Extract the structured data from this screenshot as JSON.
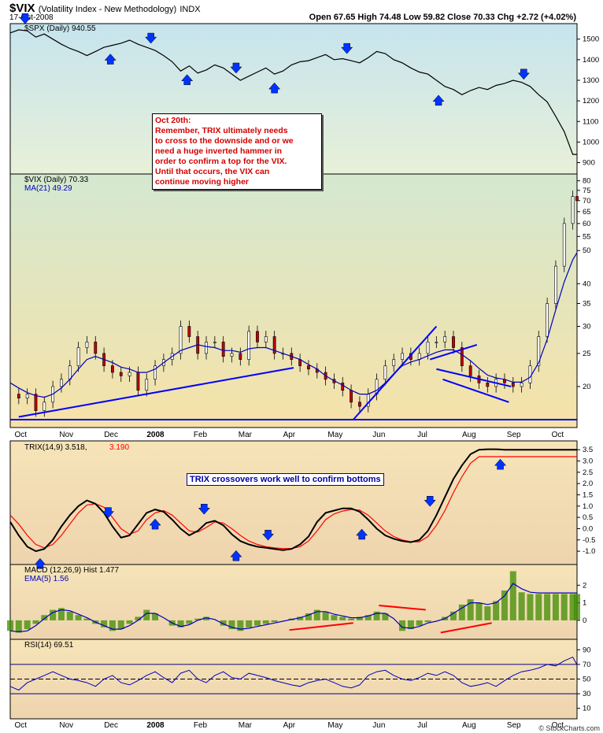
{
  "header": {
    "symbol": "$VIX",
    "name": "(Volatility Index - New Methodology)",
    "exchange": "INDX",
    "date": "17-Oct-2008",
    "ohlc": "Open 67.65   High 74.48   Low 59.82   Close 70.33   Chg +2.72 (+4.02%)",
    "brand": "© StockCharts.com"
  },
  "annotations": {
    "note_lines": [
      "Oct 20th:",
      "Remember, TRIX ultimately needs",
      "to cross to the downside and or we",
      "need a huge inverted hammer in",
      "order to confirm a top for the VIX.",
      "Until that occurs, the VIX can",
      "continue moving higher"
    ],
    "trix_note": "TRIX crossovers work well to confirm bottoms"
  },
  "colors": {
    "price": "#000000",
    "ma": "#0000c0",
    "trendline": "#0000ff",
    "arrow": "#0033ff",
    "signal": "#ff0000",
    "hist": "#3c8c00",
    "spx_bg_top": "#c6e4ee",
    "spx_bg_bottom": "#e8f0d8",
    "vix_bg_top": "#d4e8d0",
    "vix_bg_bottom": "#f6e2a8",
    "ind_bg_top": "#f6e4b8",
    "ind_bg_bottom": "#eed4ae"
  },
  "chart_data": [
    {
      "type": "line",
      "name": "spx-panel",
      "legend": "$SPX (Daily) 940.55",
      "y_ticks": [
        900,
        1000,
        1100,
        1200,
        1300,
        1400,
        1500
      ],
      "ylim": [
        860,
        1560
      ],
      "x": [
        0,
        4,
        8,
        12,
        16,
        20,
        24,
        28,
        32,
        36,
        40,
        44,
        48,
        52,
        56,
        60,
        64,
        68,
        72,
        76,
        80,
        84,
        88,
        92,
        96,
        100,
        104,
        108,
        112,
        116,
        120,
        124,
        128,
        132,
        136,
        140,
        144,
        148,
        152,
        156,
        160,
        164,
        168,
        172,
        176,
        180,
        184,
        188,
        192,
        196,
        200,
        204,
        208,
        212,
        216,
        220,
        224,
        228,
        232,
        236,
        240,
        244,
        248,
        252,
        256,
        260,
        264,
        266
      ],
      "series": [
        {
          "name": "$SPX",
          "values": [
            1530,
            1545,
            1540,
            1510,
            1525,
            1500,
            1475,
            1455,
            1440,
            1420,
            1440,
            1460,
            1470,
            1480,
            1495,
            1475,
            1460,
            1445,
            1420,
            1390,
            1345,
            1370,
            1335,
            1350,
            1375,
            1360,
            1330,
            1300,
            1320,
            1340,
            1360,
            1330,
            1345,
            1375,
            1390,
            1395,
            1410,
            1425,
            1400,
            1405,
            1395,
            1385,
            1410,
            1440,
            1430,
            1400,
            1385,
            1360,
            1340,
            1330,
            1300,
            1270,
            1255,
            1230,
            1250,
            1265,
            1255,
            1275,
            1285,
            1300,
            1290,
            1270,
            1230,
            1195,
            1125,
            1050,
            940,
            940
          ]
        }
      ],
      "arrows_down_x": [
        7,
        66,
        106,
        158,
        241
      ],
      "arrows_up_x": [
        47,
        83,
        124,
        201
      ]
    },
    {
      "type": "line",
      "name": "vix-panel",
      "legend": "$VIX (Daily) 70.33",
      "legend_ma": "MA(21) 49.29",
      "y_ticks": [
        20,
        25,
        30,
        35,
        40,
        50,
        55,
        60,
        65,
        70,
        75,
        80
      ],
      "ylim": [
        15.5,
        82
      ],
      "x_labels": [
        "Oct",
        "Nov",
        "Dec",
        "2008",
        "Feb",
        "Mar",
        "Apr",
        "May",
        "Jun",
        "Jul",
        "Aug",
        "Sep",
        "Oct"
      ],
      "x_label_pos": [
        5,
        26,
        47,
        67,
        89,
        110,
        131,
        152,
        173,
        194,
        215,
        236,
        257
      ],
      "x": [
        0,
        4,
        8,
        12,
        16,
        20,
        24,
        28,
        32,
        36,
        40,
        44,
        48,
        52,
        56,
        60,
        64,
        68,
        72,
        76,
        80,
        84,
        88,
        92,
        96,
        100,
        104,
        108,
        112,
        116,
        120,
        124,
        128,
        132,
        136,
        140,
        144,
        148,
        152,
        156,
        160,
        164,
        168,
        172,
        176,
        180,
        184,
        188,
        192,
        196,
        200,
        204,
        208,
        212,
        216,
        220,
        224,
        228,
        232,
        236,
        240,
        244,
        248,
        252,
        256,
        260,
        264,
        266
      ],
      "series": [
        {
          "name": "$VIX",
          "values": [
            19,
            18.5,
            19,
            17,
            18,
            20,
            21,
            23,
            26,
            27,
            25,
            23,
            22,
            21.5,
            22,
            19.5,
            21,
            23,
            24,
            25,
            30,
            28,
            25,
            27,
            27,
            24.5,
            25,
            24,
            29,
            27,
            28,
            25,
            25,
            24,
            23,
            22.5,
            22,
            21,
            20.5,
            19.5,
            18,
            17.5,
            19,
            21,
            23,
            24,
            25,
            24,
            25,
            27,
            27,
            28,
            26,
            23,
            21.5,
            20.5,
            20,
            21,
            20.5,
            20,
            20.5,
            23,
            28,
            35,
            45,
            60,
            72,
            70
          ]
        },
        {
          "name": "MA(21)",
          "values": [
            20.5,
            19.8,
            19.2,
            18.8,
            18.6,
            19,
            19.8,
            21,
            22.5,
            24,
            24.5,
            24,
            23.5,
            22.8,
            22.5,
            22,
            22,
            22.5,
            23.5,
            24.5,
            25.5,
            26,
            26.5,
            26.2,
            26,
            25.5,
            25.5,
            25.2,
            25.8,
            26,
            26,
            25.5,
            25,
            24.5,
            24,
            23.2,
            22.5,
            21.5,
            20.8,
            20.2,
            19.5,
            19,
            19,
            19.5,
            20.5,
            21.8,
            23,
            23.6,
            24,
            24.6,
            25.2,
            25.6,
            25.6,
            24.8,
            23.8,
            22.6,
            21.6,
            21.2,
            21,
            20.6,
            20.6,
            21.3,
            23.5,
            27.5,
            33.5,
            40.5,
            47,
            49.3
          ]
        }
      ],
      "trendlines": [
        [
          4,
          16.3,
          133,
          22.7
        ],
        [
          161,
          16,
          200,
          30
        ],
        [
          197,
          24,
          219,
          26.5
        ],
        [
          203,
          21,
          234,
          18
        ],
        [
          200,
          22.5,
          235,
          20
        ],
        [
          0,
          16,
          266,
          16
        ]
      ],
      "arrows_up_x": [
        7
      ],
      "arrows_down_x": [
        7
      ]
    },
    {
      "type": "line",
      "name": "trix-panel",
      "legend": "TRIX(14,9) 3.518,",
      "legend_signal": "3.190",
      "y_ticks": [
        -1.0,
        -0.5,
        0.0,
        0.5,
        1.0,
        1.5,
        2.0,
        2.5,
        3.0,
        3.5
      ],
      "ylim": [
        -1.45,
        3.75
      ],
      "x": [
        0,
        4,
        8,
        12,
        16,
        20,
        24,
        28,
        32,
        36,
        40,
        44,
        48,
        52,
        56,
        60,
        64,
        68,
        72,
        76,
        80,
        84,
        88,
        92,
        96,
        100,
        104,
        108,
        112,
        116,
        120,
        124,
        128,
        132,
        136,
        140,
        144,
        148,
        152,
        156,
        160,
        164,
        168,
        172,
        176,
        180,
        184,
        188,
        192,
        196,
        200,
        204,
        208,
        212,
        216,
        220,
        224,
        228,
        232,
        236,
        240,
        244,
        248,
        252,
        256,
        260,
        264,
        266
      ],
      "series": [
        {
          "name": "TRIX",
          "values": [
            0.3,
            -0.3,
            -0.8,
            -1.0,
            -0.9,
            -0.5,
            0.1,
            0.6,
            1.0,
            1.25,
            1.1,
            0.7,
            0.1,
            -0.4,
            -0.3,
            0.2,
            0.7,
            0.85,
            0.75,
            0.4,
            0.0,
            -0.3,
            -0.1,
            0.25,
            0.35,
            0.15,
            -0.25,
            -0.55,
            -0.7,
            -0.8,
            -0.85,
            -0.9,
            -0.95,
            -0.9,
            -0.7,
            -0.35,
            0.3,
            0.7,
            0.8,
            0.9,
            0.9,
            0.75,
            0.4,
            0.0,
            -0.3,
            -0.45,
            -0.55,
            -0.6,
            -0.5,
            -0.1,
            0.6,
            1.4,
            2.2,
            2.8,
            3.3,
            3.5,
            3.52,
            3.52,
            3.5,
            3.5,
            3.5,
            3.5,
            3.5,
            3.5,
            3.5,
            3.5,
            3.5,
            3.5
          ]
        },
        {
          "name": "Signal",
          "values": [
            0.6,
            0.2,
            -0.3,
            -0.7,
            -0.85,
            -0.7,
            -0.3,
            0.2,
            0.7,
            1.05,
            1.1,
            0.95,
            0.5,
            0.0,
            -0.25,
            -0.1,
            0.4,
            0.7,
            0.8,
            0.6,
            0.25,
            -0.1,
            -0.15,
            0.05,
            0.3,
            0.25,
            0.0,
            -0.3,
            -0.55,
            -0.7,
            -0.8,
            -0.85,
            -0.88,
            -0.88,
            -0.8,
            -0.55,
            -0.1,
            0.4,
            0.65,
            0.78,
            0.85,
            0.82,
            0.6,
            0.25,
            -0.1,
            -0.35,
            -0.5,
            -0.58,
            -0.58,
            -0.35,
            0.15,
            0.8,
            1.6,
            2.3,
            2.9,
            3.19,
            3.19,
            3.19,
            3.19,
            3.19,
            3.19,
            3.19,
            3.19,
            3.19,
            3.19,
            3.19,
            3.19,
            3.19
          ]
        }
      ],
      "arrows_down_x": [
        46,
        91,
        121,
        197
      ],
      "arrows_up_x": [
        14,
        68,
        106,
        165,
        230
      ]
    },
    {
      "type": "bar",
      "name": "macd-panel",
      "legend": "MACD (12,26,9) Hist 1.477",
      "legend_ema": "EMA(5) 1.56",
      "y_ticks": [
        0,
        1,
        2
      ],
      "ylim": [
        -0.9,
        3.0
      ],
      "x": [
        0,
        4,
        8,
        12,
        16,
        20,
        24,
        28,
        32,
        36,
        40,
        44,
        48,
        52,
        56,
        60,
        64,
        68,
        72,
        76,
        80,
        84,
        88,
        92,
        96,
        100,
        104,
        108,
        112,
        116,
        120,
        124,
        128,
        132,
        136,
        140,
        144,
        148,
        152,
        156,
        160,
        164,
        168,
        172,
        176,
        180,
        184,
        188,
        192,
        196,
        200,
        204,
        208,
        212,
        216,
        220,
        224,
        228,
        232,
        236,
        240,
        244,
        248,
        252,
        256,
        260,
        264,
        266
      ],
      "series": [
        {
          "name": "Hist",
          "values": [
            -0.6,
            -0.7,
            -0.5,
            -0.2,
            0.3,
            0.6,
            0.7,
            0.5,
            0.3,
            0.1,
            -0.2,
            -0.4,
            -0.6,
            -0.5,
            -0.2,
            0.2,
            0.6,
            0.4,
            0.0,
            -0.3,
            -0.4,
            -0.2,
            0.1,
            0.2,
            0.0,
            -0.3,
            -0.5,
            -0.6,
            -0.4,
            -0.3,
            -0.2,
            -0.1,
            0.0,
            0.1,
            0.2,
            0.4,
            0.6,
            0.5,
            0.3,
            0.2,
            0.1,
            0.2,
            0.3,
            0.5,
            0.4,
            0.0,
            -0.6,
            -0.5,
            -0.3,
            -0.1,
            0.0,
            0.2,
            0.5,
            0.9,
            1.2,
            1.0,
            0.8,
            1.1,
            1.7,
            2.8,
            1.6,
            1.5,
            1.5,
            1.5,
            1.5,
            1.5,
            1.5,
            1.5
          ]
        },
        {
          "name": "EMA(5)",
          "values": [
            -0.6,
            -0.65,
            -0.6,
            -0.3,
            0.1,
            0.45,
            0.6,
            0.55,
            0.35,
            0.15,
            -0.1,
            -0.3,
            -0.5,
            -0.5,
            -0.3,
            0.0,
            0.4,
            0.4,
            0.15,
            -0.15,
            -0.35,
            -0.25,
            0.0,
            0.15,
            0.05,
            -0.2,
            -0.4,
            -0.5,
            -0.45,
            -0.35,
            -0.25,
            -0.15,
            -0.05,
            0.05,
            0.15,
            0.3,
            0.5,
            0.5,
            0.35,
            0.25,
            0.15,
            0.15,
            0.25,
            0.4,
            0.4,
            0.1,
            -0.4,
            -0.45,
            -0.35,
            -0.15,
            -0.05,
            0.1,
            0.4,
            0.7,
            1.0,
            1.0,
            0.9,
            1.0,
            1.4,
            2.1,
            1.8,
            1.6,
            1.56,
            1.56,
            1.56,
            1.56,
            1.56,
            1.56
          ]
        }
      ],
      "red_lines": [
        [
          131,
          -0.55,
          161,
          -0.15
        ],
        [
          173,
          0.85,
          195,
          0.6
        ],
        [
          202,
          -0.7,
          226,
          -0.15
        ]
      ]
    },
    {
      "type": "line",
      "name": "rsi-panel",
      "legend": "RSI(14) 69.51",
      "y_ticks": [
        10,
        30,
        50,
        70,
        90
      ],
      "ylim": [
        0,
        100
      ],
      "guides": [
        30,
        50,
        70
      ],
      "x_labels": [
        "Oct",
        "Nov",
        "Dec",
        "2008",
        "Feb",
        "Mar",
        "Apr",
        "May",
        "Jun",
        "Jul",
        "Aug",
        "Sep",
        "Oct"
      ],
      "x": [
        0,
        4,
        8,
        12,
        16,
        20,
        24,
        28,
        32,
        36,
        40,
        44,
        48,
        52,
        56,
        60,
        64,
        68,
        72,
        76,
        80,
        84,
        88,
        92,
        96,
        100,
        104,
        108,
        112,
        116,
        120,
        124,
        128,
        132,
        136,
        140,
        144,
        148,
        152,
        156,
        160,
        164,
        168,
        172,
        176,
        180,
        184,
        188,
        192,
        196,
        200,
        204,
        208,
        212,
        216,
        220,
        224,
        228,
        232,
        236,
        240,
        244,
        248,
        252,
        256,
        260,
        264,
        266
      ],
      "series": [
        {
          "name": "RSI",
          "values": [
            40,
            35,
            45,
            50,
            55,
            60,
            55,
            50,
            48,
            45,
            40,
            50,
            55,
            45,
            42,
            48,
            55,
            60,
            52,
            45,
            58,
            62,
            50,
            45,
            55,
            60,
            52,
            50,
            58,
            55,
            52,
            48,
            45,
            42,
            40,
            45,
            48,
            50,
            45,
            40,
            38,
            42,
            55,
            60,
            62,
            55,
            50,
            48,
            52,
            58,
            55,
            60,
            55,
            45,
            40,
            42,
            45,
            40,
            48,
            55,
            60,
            62,
            65,
            70,
            68,
            75,
            80,
            69.5
          ]
        }
      ]
    }
  ]
}
